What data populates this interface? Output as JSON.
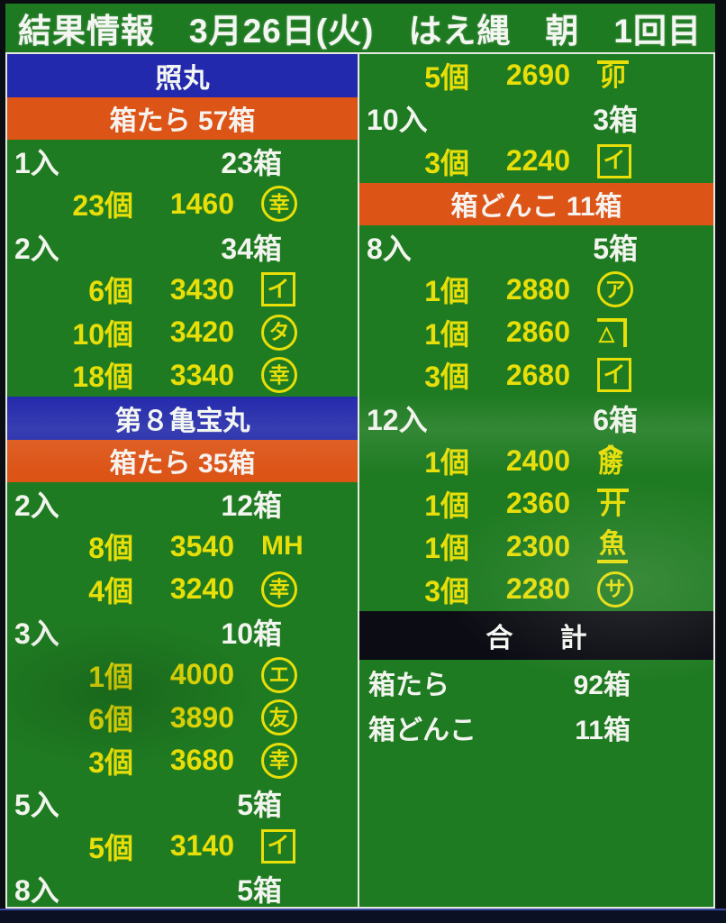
{
  "header": {
    "title": "結果情報　3月26日(火)　はえ縄　朝　1回目"
  },
  "colors": {
    "background_green": "#1f7b22",
    "boat_header_blue": "#2329ac",
    "fish_header_orange": "#dd5417",
    "price_text_yellow": "#e8de08",
    "label_text_white": "#f2f4ee",
    "total_bar_black": "#0c0c14",
    "border_white": "#e6e8e2"
  },
  "left": {
    "rows": [
      {
        "type": "boat",
        "text": "照丸"
      },
      {
        "type": "fish",
        "text": "箱たら 57箱"
      },
      {
        "type": "size",
        "label": "1入",
        "boxes": "23箱"
      },
      {
        "type": "detail",
        "count": "23個",
        "price": "1460",
        "mark": {
          "type": "circle",
          "text": "幸"
        }
      },
      {
        "type": "size",
        "label": "2入",
        "boxes": "34箱"
      },
      {
        "type": "detail",
        "count": "6個",
        "price": "3430",
        "mark": {
          "type": "box",
          "text": "イ"
        }
      },
      {
        "type": "detail",
        "count": "10個",
        "price": "3420",
        "mark": {
          "type": "circle",
          "text": "タ"
        }
      },
      {
        "type": "detail",
        "count": "18個",
        "price": "3340",
        "mark": {
          "type": "circle",
          "text": "幸"
        }
      },
      {
        "type": "boat",
        "text": "第８亀宝丸"
      },
      {
        "type": "fish",
        "text": "箱たら 35箱"
      },
      {
        "type": "size",
        "label": "2入",
        "boxes": "12箱"
      },
      {
        "type": "detail",
        "count": "8個",
        "price": "3540",
        "mark": {
          "type": "plain",
          "text": "MH"
        }
      },
      {
        "type": "detail",
        "count": "4個",
        "price": "3240",
        "mark": {
          "type": "circle",
          "text": "幸"
        }
      },
      {
        "type": "size",
        "label": "3入",
        "boxes": "10箱"
      },
      {
        "type": "detail",
        "count": "1個",
        "price": "4000",
        "mark": {
          "type": "circle",
          "text": "エ"
        }
      },
      {
        "type": "detail",
        "count": "6個",
        "price": "3890",
        "mark": {
          "type": "circle",
          "text": "友"
        }
      },
      {
        "type": "detail",
        "count": "3個",
        "price": "3680",
        "mark": {
          "type": "circle",
          "text": "幸"
        }
      },
      {
        "type": "size",
        "label": "5入",
        "boxes": "5箱"
      },
      {
        "type": "detail",
        "count": "5個",
        "price": "3140",
        "mark": {
          "type": "box",
          "text": "イ"
        }
      },
      {
        "type": "size",
        "label": "8入",
        "boxes": "5箱"
      }
    ]
  },
  "right": {
    "rows": [
      {
        "type": "detail",
        "count": "5個",
        "price": "2690",
        "mark": {
          "type": "overline",
          "text": "卯"
        }
      },
      {
        "type": "size",
        "label": "10入",
        "boxes": "3箱"
      },
      {
        "type": "detail",
        "count": "3個",
        "price": "2240",
        "mark": {
          "type": "box",
          "text": "イ"
        }
      },
      {
        "type": "fish",
        "text": "箱どんこ 11箱"
      },
      {
        "type": "size",
        "label": "8入",
        "boxes": "5箱"
      },
      {
        "type": "detail",
        "count": "1個",
        "price": "2880",
        "mark": {
          "type": "circle",
          "text": "ア"
        }
      },
      {
        "type": "detail",
        "count": "1個",
        "price": "2860",
        "mark": {
          "type": "kane",
          "text": "△"
        }
      },
      {
        "type": "detail",
        "count": "3個",
        "price": "2680",
        "mark": {
          "type": "box",
          "text": "イ"
        }
      },
      {
        "type": "size",
        "label": "12入",
        "boxes": "6箱"
      },
      {
        "type": "detail",
        "count": "1個",
        "price": "2400",
        "mark": {
          "type": "yama",
          "text": "勝"
        }
      },
      {
        "type": "detail",
        "count": "1個",
        "price": "2360",
        "mark": {
          "type": "overline",
          "text": "廾"
        }
      },
      {
        "type": "detail",
        "count": "1個",
        "price": "2300",
        "mark": {
          "type": "underline",
          "text": "魚"
        }
      },
      {
        "type": "detail",
        "count": "3個",
        "price": "2280",
        "mark": {
          "type": "circle",
          "text": "サ"
        }
      },
      {
        "type": "total_bar",
        "text": "合 計"
      },
      {
        "type": "total",
        "label": "箱たら",
        "boxes": "92箱"
      },
      {
        "type": "total",
        "label": "箱どんこ",
        "boxes": "11箱"
      }
    ]
  }
}
